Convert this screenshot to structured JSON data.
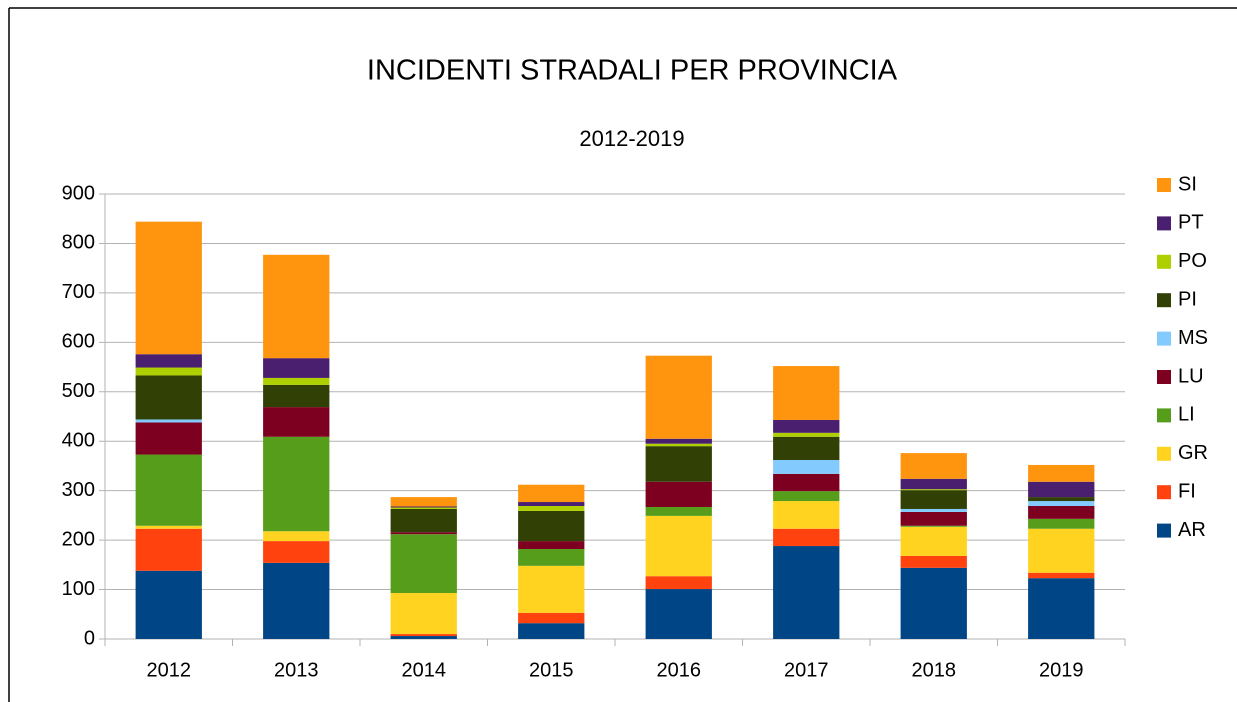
{
  "chart_data": {
    "type": "stacked_bar",
    "title": "INCIDENTI STRADALI PER PROVINCIA",
    "subtitle": "2012-2019",
    "categories": [
      "2012",
      "2013",
      "2014",
      "2015",
      "2016",
      "2017",
      "2018",
      "2019"
    ],
    "series": [
      {
        "name": "AR",
        "color": "#004586",
        "values": [
          138,
          154,
          6,
          32,
          101,
          188,
          144,
          123
        ]
      },
      {
        "name": "FI",
        "color": "#ff420e",
        "values": [
          85,
          44,
          4,
          21,
          26,
          35,
          24,
          11
        ]
      },
      {
        "name": "GR",
        "color": "#ffd320",
        "values": [
          6,
          20,
          83,
          95,
          122,
          56,
          59,
          89
        ]
      },
      {
        "name": "LI",
        "color": "#579d1c",
        "values": [
          144,
          191,
          119,
          34,
          18,
          20,
          2,
          20
        ]
      },
      {
        "name": "LU",
        "color": "#7e0021",
        "values": [
          65,
          60,
          4,
          16,
          51,
          35,
          28,
          26
        ]
      },
      {
        "name": "MS",
        "color": "#83caff",
        "values": [
          6,
          0,
          0,
          0,
          0,
          28,
          6,
          10
        ]
      },
      {
        "name": "PI",
        "color": "#314004",
        "values": [
          89,
          45,
          47,
          61,
          72,
          47,
          38,
          8
        ]
      },
      {
        "name": "PO",
        "color": "#aecf00",
        "values": [
          16,
          14,
          3,
          10,
          5,
          8,
          2,
          0
        ]
      },
      {
        "name": "PT",
        "color": "#4b1f6f",
        "values": [
          27,
          40,
          2,
          8,
          10,
          26,
          21,
          31
        ]
      },
      {
        "name": "SI",
        "color": "#ff950e",
        "values": [
          268,
          209,
          19,
          35,
          168,
          109,
          52,
          34
        ]
      }
    ],
    "ylim": [
      0,
      900
    ],
    "yticks": [
      0,
      100,
      200,
      300,
      400,
      500,
      600,
      700,
      800,
      900
    ],
    "grid": true,
    "legend": "right"
  }
}
